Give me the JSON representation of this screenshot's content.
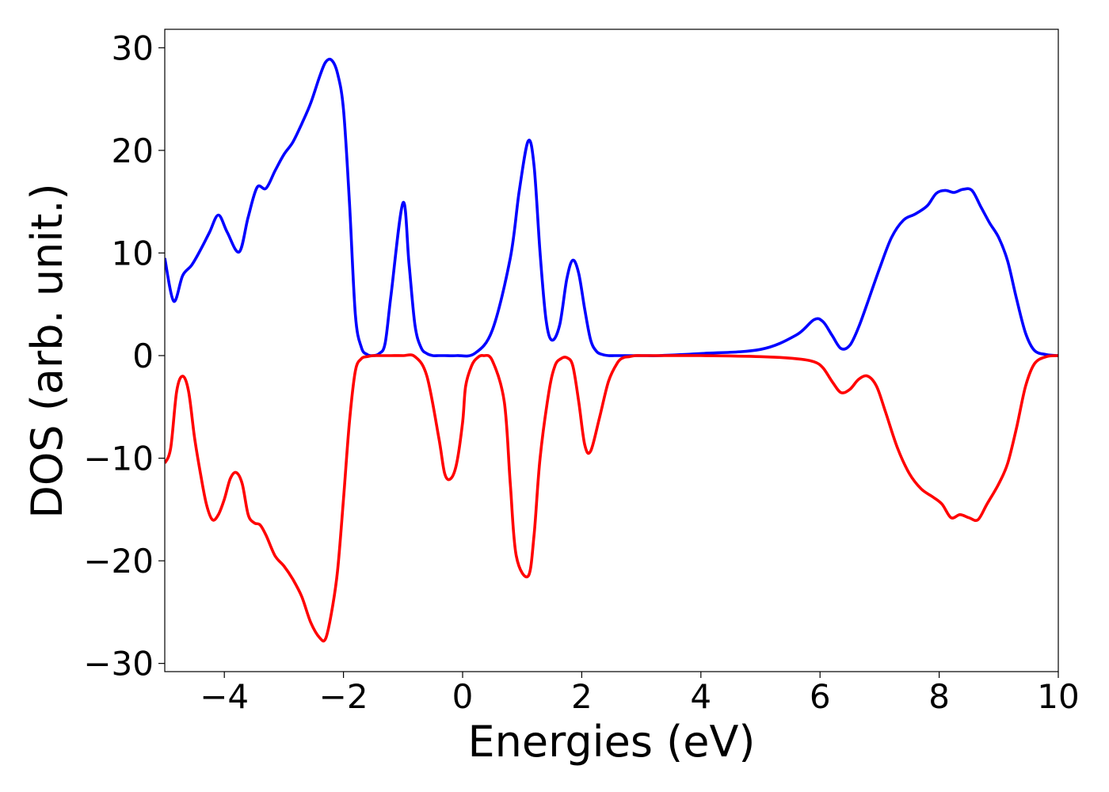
{
  "chart_data": {
    "type": "line",
    "title": "",
    "xlabel": "Energies (eV)",
    "ylabel": "DOS (arb. unit.)",
    "xlim": [
      -5,
      10
    ],
    "ylim": [
      -30.8,
      31.8
    ],
    "grid": false,
    "legend": "none",
    "x_ticks": [
      -4,
      -2,
      0,
      2,
      4,
      6,
      8,
      10
    ],
    "x_tick_labels": [
      "−4",
      "−2",
      "0",
      "2",
      "4",
      "6",
      "8",
      "10"
    ],
    "y_ticks": [
      30,
      20,
      10,
      0,
      -10,
      -20,
      -30
    ],
    "y_tick_labels": [
      "30",
      "20",
      "10",
      "0",
      "−10",
      "−20",
      "−30"
    ],
    "series": [
      {
        "color": "#0000ff",
        "x": [
          -5.0,
          -4.85,
          -4.7,
          -4.55,
          -4.4,
          -4.25,
          -4.1,
          -3.95,
          -3.75,
          -3.6,
          -3.45,
          -3.3,
          -3.15,
          -3.0,
          -2.85,
          -2.7,
          -2.55,
          -2.4,
          -2.3,
          -2.2,
          -2.1,
          -2.0,
          -1.9,
          -1.8,
          -1.7,
          -1.6,
          -1.5,
          -1.4,
          -1.3,
          -1.2,
          -1.0,
          -0.9,
          -0.8,
          -0.7,
          -0.6,
          -0.5,
          -0.4,
          -0.3,
          -0.1,
          0.2,
          0.5,
          0.8,
          0.95,
          1.1,
          1.2,
          1.3,
          1.4,
          1.5,
          1.63,
          1.75,
          1.85,
          1.95,
          2.05,
          2.15,
          2.25,
          2.35,
          2.45,
          2.55,
          2.65,
          2.75,
          2.85,
          2.95,
          3.1,
          3.3,
          4.0,
          5.0,
          5.6,
          5.9,
          6.05,
          6.2,
          6.35,
          6.5,
          6.65,
          6.8,
          7.0,
          7.2,
          7.4,
          7.6,
          7.8,
          7.95,
          8.1,
          8.25,
          8.4,
          8.55,
          8.7,
          8.85,
          9.0,
          9.15,
          9.3,
          9.45,
          9.6,
          9.8,
          10.0
        ],
        "values": [
          9.5,
          5.3,
          7.8,
          8.8,
          10.3,
          12.0,
          13.7,
          12.0,
          10.1,
          13.5,
          16.4,
          16.3,
          18.0,
          19.6,
          20.8,
          22.6,
          24.6,
          27.2,
          28.6,
          28.8,
          27.5,
          24.0,
          15.0,
          4.0,
          0.8,
          0.1,
          0.0,
          0.2,
          1.2,
          6.0,
          14.9,
          9.0,
          3.0,
          0.8,
          0.2,
          0.0,
          0.0,
          0.0,
          0.0,
          0.2,
          2.5,
          9.5,
          16.0,
          20.9,
          18.5,
          10.0,
          3.5,
          1.5,
          3.0,
          7.5,
          9.3,
          8.0,
          4.5,
          1.5,
          0.4,
          0.1,
          0.0,
          0.0,
          0.0,
          0.0,
          0.0,
          0.0,
          0.0,
          0.0,
          0.2,
          0.6,
          2.0,
          3.5,
          3.3,
          2.0,
          0.7,
          1.0,
          2.8,
          5.2,
          8.5,
          11.5,
          13.2,
          13.8,
          14.6,
          15.8,
          16.1,
          15.9,
          16.2,
          16.1,
          14.5,
          12.9,
          11.5,
          9.2,
          5.5,
          2.2,
          0.5,
          0.1,
          0.0
        ]
      },
      {
        "color": "#ff0000",
        "x": [
          -5.0,
          -4.9,
          -4.8,
          -4.7,
          -4.6,
          -4.5,
          -4.4,
          -4.3,
          -4.2,
          -4.1,
          -4.0,
          -3.9,
          -3.8,
          -3.7,
          -3.6,
          -3.5,
          -3.4,
          -3.3,
          -3.15,
          -3.0,
          -2.85,
          -2.7,
          -2.55,
          -2.4,
          -2.3,
          -2.2,
          -2.1,
          -2.0,
          -1.9,
          -1.8,
          -1.7,
          -1.6,
          -1.5,
          -1.4,
          -1.3,
          -1.2,
          -1.0,
          -0.8,
          -0.6,
          -0.4,
          -0.3,
          -0.2,
          -0.1,
          0.0,
          0.05,
          0.15,
          0.25,
          0.35,
          0.5,
          0.7,
          0.8,
          0.9,
          1.1,
          1.2,
          1.3,
          1.45,
          1.55,
          1.65,
          1.75,
          1.85,
          1.95,
          2.05,
          2.15,
          2.3,
          2.45,
          2.6,
          2.7,
          2.8,
          2.9,
          3.0,
          3.1,
          3.2,
          3.4,
          4.0,
          5.0,
          5.6,
          5.9,
          6.05,
          6.2,
          6.35,
          6.5,
          6.65,
          6.8,
          6.95,
          7.1,
          7.3,
          7.5,
          7.7,
          7.9,
          8.05,
          8.2,
          8.35,
          8.5,
          8.65,
          8.8,
          9.0,
          9.15,
          9.3,
          9.45,
          9.6,
          9.8,
          10.0
        ],
        "values": [
          -10.5,
          -9.0,
          -3.5,
          -2.0,
          -3.5,
          -8.0,
          -11.5,
          -14.5,
          -16.0,
          -15.5,
          -14.0,
          -12.0,
          -11.4,
          -12.5,
          -15.5,
          -16.3,
          -16.5,
          -17.5,
          -19.5,
          -20.5,
          -21.8,
          -23.5,
          -26.0,
          -27.5,
          -27.6,
          -25.0,
          -21.0,
          -14.0,
          -6.5,
          -1.5,
          -0.3,
          -0.1,
          0.0,
          0.0,
          0.0,
          0.0,
          0.0,
          -0.1,
          -2.0,
          -8.0,
          -11.5,
          -12.0,
          -10.5,
          -6.5,
          -3.0,
          -1.0,
          -0.2,
          0.0,
          -0.5,
          -4.5,
          -12.5,
          -19.5,
          -21.5,
          -17.5,
          -10.0,
          -3.5,
          -1.0,
          -0.3,
          -0.2,
          -1.0,
          -4.5,
          -8.7,
          -9.3,
          -6.0,
          -2.5,
          -0.7,
          -0.2,
          -0.1,
          0.0,
          0.0,
          0.0,
          0.0,
          0.0,
          0.0,
          -0.1,
          -0.3,
          -0.6,
          -1.2,
          -2.5,
          -3.6,
          -3.3,
          -2.3,
          -2.0,
          -3.0,
          -5.5,
          -9.0,
          -11.5,
          -13.0,
          -13.8,
          -14.5,
          -15.8,
          -15.5,
          -15.8,
          -16.0,
          -14.5,
          -12.5,
          -10.5,
          -7.0,
          -3.0,
          -0.8,
          -0.1,
          0.0
        ]
      }
    ]
  }
}
